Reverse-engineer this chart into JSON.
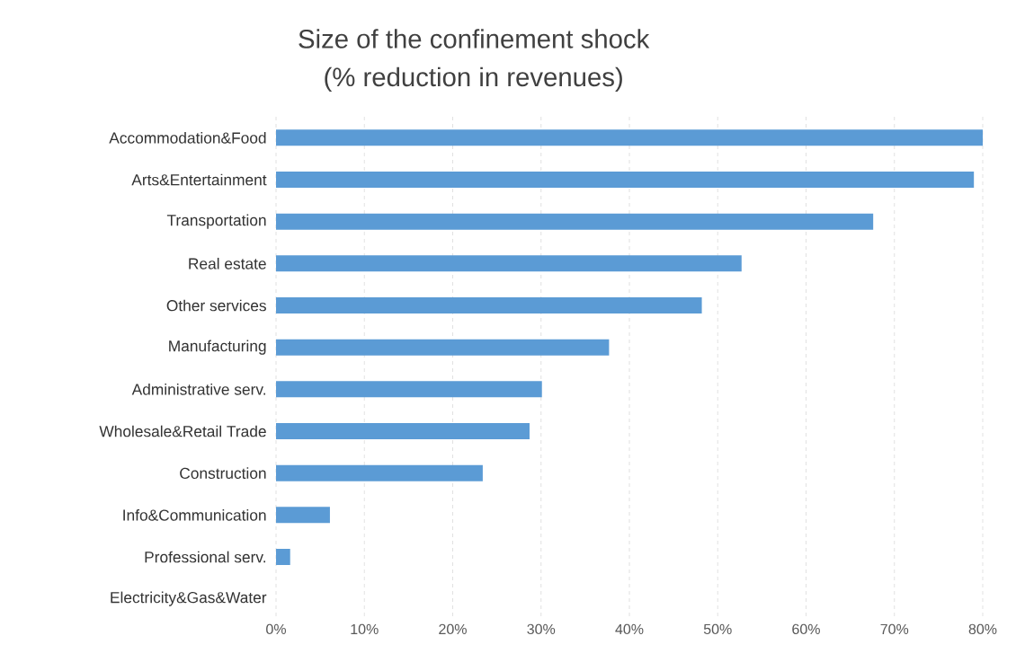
{
  "chart_data": {
    "type": "bar",
    "orientation": "horizontal",
    "title": "Size of the confinement shock",
    "subtitle": "(% reduction in revenues)",
    "categories": [
      "Accommodation&Food",
      "Arts&Entertainment",
      "Transportation",
      "Real estate",
      "Other services",
      "Manufacturing",
      "Administrative serv.",
      "Wholesale&Retail Trade",
      "Construction",
      "Info&Communication",
      "Professional serv.",
      "Electricity&Gas&Water"
    ],
    "values": [
      80,
      79,
      67.6,
      52.7,
      48.2,
      37.7,
      30.1,
      28.7,
      23.4,
      6.1,
      1.6,
      0
    ],
    "color": "#5b9bd5",
    "xlim": [
      0,
      80
    ],
    "xticks": [
      {
        "value": 0,
        "label": "0%"
      },
      {
        "value": 10,
        "label": "10%"
      },
      {
        "value": 20,
        "label": "20%"
      },
      {
        "value": 30,
        "label": "30%"
      },
      {
        "value": 40,
        "label": "40%"
      },
      {
        "value": 50,
        "label": "50%"
      },
      {
        "value": 60,
        "label": "60%"
      },
      {
        "value": 70,
        "label": "70%"
      },
      {
        "value": 80,
        "label": "80%"
      }
    ],
    "grid": "x"
  }
}
